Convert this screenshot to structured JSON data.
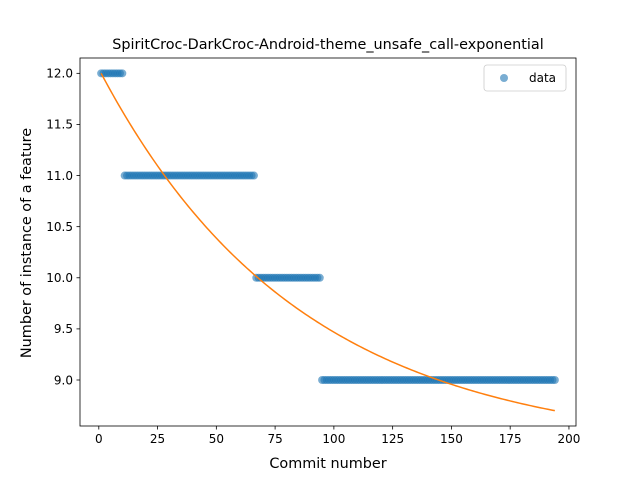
{
  "chart_data": {
    "type": "scatter",
    "title": "SpiritCroc-DarkCroc-Android-theme_unsafe_call-exponential",
    "xlabel": "Commit number",
    "ylabel": "Number of instance of a feature",
    "xlim": [
      -8,
      203
    ],
    "ylim": [
      8.55,
      12.15
    ],
    "x_ticks": [
      0,
      25,
      50,
      75,
      100,
      125,
      150,
      175,
      200
    ],
    "y_ticks": [
      9.0,
      9.5,
      10.0,
      10.5,
      11.0,
      11.5,
      12.0
    ],
    "grid": false,
    "legend": {
      "position": "top-right",
      "entries": [
        "data"
      ]
    },
    "colors": {
      "data": "#1f77b4",
      "fit": "#ff7f0e"
    },
    "series": [
      {
        "name": "data",
        "kind": "scatter",
        "segments": [
          {
            "x_start": 1,
            "x_end": 10,
            "y": 12.0
          },
          {
            "x_start": 11,
            "x_end": 66,
            "y": 11.0
          },
          {
            "x_start": 67,
            "x_end": 94,
            "y": 10.0
          },
          {
            "x_start": 95,
            "x_end": 194,
            "y": 9.0
          }
        ]
      },
      {
        "kind": "line",
        "x_start": 1,
        "x_end": 194,
        "y_start": 12.0,
        "y_end": 8.7,
        "shape": "exponential decay"
      }
    ]
  }
}
